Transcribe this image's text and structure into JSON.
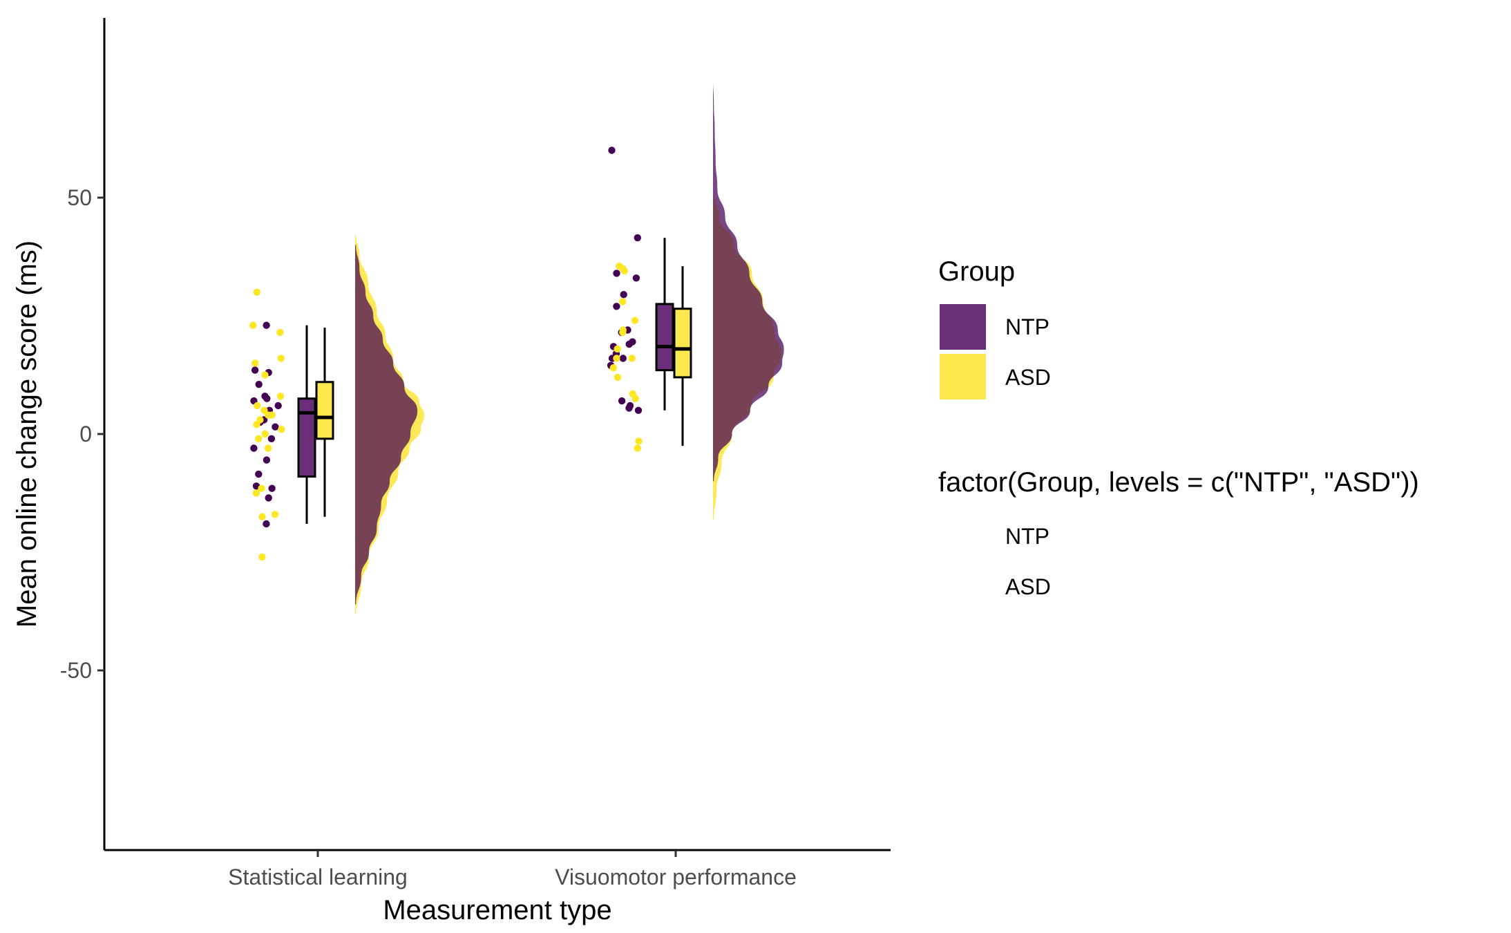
{
  "chart_data": {
    "type": "raincloud",
    "title": "",
    "xlabel": "Measurement type",
    "ylabel": "Mean online change score (ms)",
    "ylim": [
      -88,
      88
    ],
    "yticks": [
      -50,
      0,
      50
    ],
    "categories": [
      "Statistical learning",
      "Visuomotor performance"
    ],
    "grid": false,
    "legend_position": "right",
    "groups": [
      "NTP",
      "ASD"
    ],
    "colors": {
      "NTP": "#440154",
      "ASD": "#FDE725",
      "NTP_fill": "#6a2f78",
      "ASD_fill": "#fde84e",
      "overlap": "#dfc43a"
    },
    "legends": [
      {
        "title": "Group",
        "entries": [
          "NTP",
          "ASD"
        ],
        "show_keys": true
      },
      {
        "title": "factor(Group, levels = c(\"NTP\", \"ASD\"))",
        "entries": [
          "NTP",
          "ASD"
        ],
        "show_keys": false
      }
    ],
    "boxplots": [
      {
        "category": "Statistical learning",
        "group": "NTP",
        "whisker_low": -19,
        "q1": -9,
        "median": 4.5,
        "q3": 7.5,
        "whisker_high": 23
      },
      {
        "category": "Statistical learning",
        "group": "ASD",
        "whisker_low": -17.5,
        "q1": -1,
        "median": 3.5,
        "q3": 11,
        "whisker_high": 22.5
      },
      {
        "category": "Visuomotor performance",
        "group": "NTP",
        "whisker_low": 5,
        "q1": 13.5,
        "median": 18.5,
        "q3": 27.5,
        "whisker_high": 41.5
      },
      {
        "category": "Visuomotor performance",
        "group": "ASD",
        "whisker_low": -2.5,
        "q1": 12,
        "median": 18,
        "q3": 26.5,
        "whisker_high": 35.5
      }
    ],
    "densities": [
      {
        "category": "Statistical learning",
        "group": "NTP",
        "y": [
          -36,
          -30,
          -25,
          -20,
          -15,
          -10,
          -5,
          0,
          5,
          10,
          15,
          20,
          25,
          30,
          35,
          40
        ],
        "width": [
          0.01,
          0.07,
          0.16,
          0.25,
          0.3,
          0.4,
          0.53,
          0.64,
          0.72,
          0.57,
          0.44,
          0.32,
          0.21,
          0.12,
          0.05,
          0.01
        ]
      },
      {
        "category": "Statistical learning",
        "group": "ASD",
        "y": [
          -38,
          -32,
          -26,
          -20,
          -14,
          -8,
          -3,
          1,
          4,
          7,
          11,
          16,
          21,
          26,
          32,
          38,
          42
        ],
        "width": [
          0.01,
          0.07,
          0.16,
          0.27,
          0.37,
          0.5,
          0.63,
          0.76,
          0.8,
          0.74,
          0.56,
          0.44,
          0.35,
          0.25,
          0.15,
          0.05,
          0.01
        ]
      },
      {
        "category": "Visuomotor performance",
        "group": "NTP",
        "y": [
          -10,
          -5,
          0,
          5,
          10,
          15,
          18,
          22,
          28,
          34,
          40,
          46,
          52,
          58,
          64,
          70,
          75
        ],
        "width": [
          0.01,
          0.06,
          0.22,
          0.43,
          0.64,
          0.8,
          0.82,
          0.75,
          0.57,
          0.42,
          0.28,
          0.14,
          0.05,
          0.03,
          0.02,
          0.01,
          0.0
        ]
      },
      {
        "category": "Visuomotor performance",
        "group": "ASD",
        "y": [
          -18,
          -12,
          -6,
          0,
          6,
          12,
          17,
          22,
          28,
          34,
          40,
          46,
          51
        ],
        "width": [
          0.01,
          0.04,
          0.1,
          0.22,
          0.44,
          0.7,
          0.79,
          0.71,
          0.58,
          0.45,
          0.25,
          0.07,
          0.01
        ]
      }
    ],
    "points": [
      {
        "category": "Statistical learning",
        "group": "NTP",
        "values": [
          23,
          13,
          13.5,
          10.5,
          8,
          7.5,
          7,
          6,
          5,
          3,
          2.5,
          1.5,
          -1,
          -3,
          -5.5,
          -8.5,
          -11.5,
          -11,
          -13.5,
          -19
        ]
      },
      {
        "category": "Statistical learning",
        "group": "ASD",
        "values": [
          30,
          23,
          21.5,
          16,
          15,
          12.5,
          8,
          6,
          5,
          4,
          4,
          3,
          2,
          1,
          0,
          -1,
          -3,
          -11.5,
          -12.5,
          -17,
          -17.5,
          -26
        ]
      },
      {
        "category": "Visuomotor performance",
        "group": "NTP",
        "values": [
          60,
          41.5,
          34,
          33,
          29.5,
          27,
          22,
          21.5,
          19.5,
          19,
          18.5,
          17,
          16,
          16,
          14.5,
          7,
          6,
          5.5,
          5
        ]
      },
      {
        "category": "Visuomotor performance",
        "group": "ASD",
        "values": [
          35.5,
          35,
          34.5,
          28,
          24,
          22,
          21.5,
          18,
          16,
          16,
          14,
          12,
          8.5,
          7.5,
          -1.5,
          -3
        ]
      }
    ]
  }
}
